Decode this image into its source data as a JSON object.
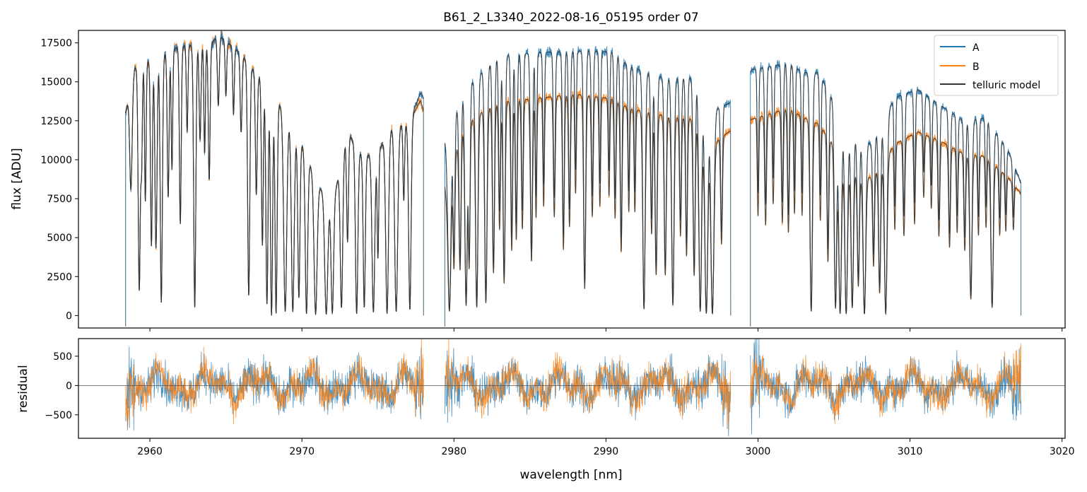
{
  "chart_data": [
    {
      "type": "line",
      "panel": "flux",
      "title": "B61_2_L3340_2022-08-16_05195  order 07",
      "xlabel": "",
      "ylabel": "flux [ADU]",
      "xlim": [
        2955.3,
        3020.2
      ],
      "ylim": [
        -800,
        18300
      ],
      "xticks": [
        2960,
        2970,
        2980,
        2990,
        3000,
        3010,
        3020
      ],
      "yticks": [
        0,
        2500,
        5000,
        7500,
        10000,
        12500,
        15000,
        17500
      ],
      "ytick_labels": [
        "0",
        "2500",
        "5000",
        "7500",
        "10000",
        "12500",
        "15000",
        "17500"
      ],
      "legend": {
        "placement": "top-right",
        "entries": [
          "A",
          "B",
          "telluric model"
        ]
      },
      "colors": {
        "A": "#1f77b4",
        "B": "#ff7f0e",
        "telluric model": "#333333"
      },
      "segments": [
        [
          2958.4,
          2978.0
        ],
        [
          2979.4,
          2998.2
        ],
        [
          2999.5,
          3017.3
        ]
      ],
      "continuum": {
        "note_units": "wavelength nm, flux ADU",
        "A": [
          [
            2958.4,
            13000
          ],
          [
            2959.0,
            15900
          ],
          [
            2961.0,
            16800
          ],
          [
            2962.0,
            17300
          ],
          [
            2964.0,
            17400
          ],
          [
            2964.5,
            18000
          ],
          [
            2966.0,
            16800
          ],
          [
            2967.0,
            15500
          ],
          [
            2968.0,
            14400
          ],
          [
            2969.0,
            12800
          ],
          [
            2970.0,
            11000
          ],
          [
            2971.0,
            8500
          ],
          [
            2972.0,
            7000
          ],
          [
            2973.0,
            11800
          ],
          [
            2974.0,
            10200
          ],
          [
            2975.0,
            10500
          ],
          [
            2976.0,
            12200
          ],
          [
            2977.0,
            12300
          ],
          [
            2977.8,
            14300
          ],
          [
            2979.5,
            11000
          ],
          [
            2980.5,
            14200
          ],
          [
            2982.0,
            15800
          ],
          [
            2983.0,
            16700
          ],
          [
            2986.0,
            16900
          ],
          [
            2989.0,
            17000
          ],
          [
            2990.5,
            16900
          ],
          [
            2991.5,
            16000
          ],
          [
            2994.0,
            15200
          ],
          [
            2996.0,
            15300
          ],
          [
            2997.0,
            13200
          ],
          [
            2998.1,
            13600
          ],
          [
            2999.6,
            15800
          ],
          [
            3002.0,
            16200
          ],
          [
            3003.0,
            15600
          ],
          [
            3004.0,
            15600
          ],
          [
            3006.0,
            11800
          ],
          [
            3007.5,
            11000
          ],
          [
            3009.0,
            14000
          ],
          [
            3010.5,
            14500
          ],
          [
            3012.0,
            13500
          ],
          [
            3013.5,
            12500
          ],
          [
            3015.0,
            12700
          ],
          [
            3016.5,
            10500
          ],
          [
            3017.3,
            8500
          ]
        ],
        "B": [
          [
            2958.4,
            13000
          ],
          [
            2959.0,
            15900
          ],
          [
            2961.0,
            16800
          ],
          [
            2962.0,
            17300
          ],
          [
            2964.0,
            17400
          ],
          [
            2964.5,
            18000
          ],
          [
            2966.0,
            16800
          ],
          [
            2967.0,
            15500
          ],
          [
            2968.0,
            14400
          ],
          [
            2969.0,
            12800
          ],
          [
            2970.0,
            11000
          ],
          [
            2971.0,
            8500
          ],
          [
            2972.0,
            7000
          ],
          [
            2973.0,
            11800
          ],
          [
            2974.0,
            10200
          ],
          [
            2975.0,
            10500
          ],
          [
            2976.0,
            12200
          ],
          [
            2977.0,
            12300
          ],
          [
            2977.8,
            13800
          ],
          [
            2979.5,
            8000
          ],
          [
            2980.5,
            12000
          ],
          [
            2982.0,
            13200
          ],
          [
            2983.0,
            13700
          ],
          [
            2986.0,
            14000
          ],
          [
            2988.0,
            14200
          ],
          [
            2990.5,
            13900
          ],
          [
            2991.5,
            13300
          ],
          [
            2994.0,
            12800
          ],
          [
            2996.0,
            12600
          ],
          [
            2997.0,
            11000
          ],
          [
            2998.1,
            11800
          ],
          [
            2999.6,
            12600
          ],
          [
            3002.0,
            13300
          ],
          [
            3003.0,
            12700
          ],
          [
            3004.0,
            12300
          ],
          [
            3006.0,
            9500
          ],
          [
            3007.5,
            8800
          ],
          [
            3009.0,
            11000
          ],
          [
            3010.5,
            11800
          ],
          [
            3012.0,
            11200
          ],
          [
            3013.5,
            10400
          ],
          [
            3015.0,
            10200
          ],
          [
            3016.5,
            8800
          ],
          [
            3017.3,
            7800
          ]
        ]
      },
      "absorption_lines": [
        [
          2958.75,
          0.45,
          0.08
        ],
        [
          2959.3,
          0.9,
          0.07
        ],
        [
          2959.45,
          0.4,
          0.05
        ],
        [
          2959.7,
          0.55,
          0.05
        ],
        [
          2960.1,
          0.73,
          0.06
        ],
        [
          2960.4,
          0.74,
          0.07
        ],
        [
          2960.75,
          0.95,
          0.07
        ],
        [
          2961.2,
          0.55,
          0.06
        ],
        [
          2961.45,
          0.45,
          0.05
        ],
        [
          2962.0,
          0.66,
          0.06
        ],
        [
          2962.45,
          0.32,
          0.05
        ],
        [
          2962.95,
          0.97,
          0.07
        ],
        [
          2963.3,
          0.35,
          0.06
        ],
        [
          2963.6,
          0.4,
          0.05
        ],
        [
          2963.9,
          0.5,
          0.06
        ],
        [
          2964.5,
          0.25,
          0.06
        ],
        [
          2965.0,
          0.2,
          0.05
        ],
        [
          2965.5,
          0.25,
          0.05
        ],
        [
          2966.0,
          0.3,
          0.06
        ],
        [
          2966.5,
          0.92,
          0.07
        ],
        [
          2967.0,
          0.5,
          0.06
        ],
        [
          2967.4,
          0.7,
          0.06
        ],
        [
          2967.7,
          0.95,
          0.07
        ],
        [
          2968.0,
          1.0,
          0.07
        ],
        [
          2968.3,
          0.99,
          0.07
        ],
        [
          2968.9,
          0.98,
          0.1
        ],
        [
          2969.4,
          0.98,
          0.09
        ],
        [
          2969.8,
          0.9,
          0.07
        ],
        [
          2970.3,
          0.99,
          0.08
        ],
        [
          2970.9,
          0.99,
          0.1
        ],
        [
          2971.6,
          0.99,
          0.1
        ],
        [
          2972.0,
          0.98,
          0.08
        ],
        [
          2972.6,
          0.95,
          0.08
        ],
        [
          2973.0,
          0.6,
          0.06
        ],
        [
          2973.6,
          0.99,
          0.08
        ],
        [
          2974.1,
          0.95,
          0.07
        ],
        [
          2974.7,
          0.98,
          0.09
        ],
        [
          2975.0,
          0.65,
          0.05
        ],
        [
          2975.6,
          0.99,
          0.09
        ],
        [
          2976.2,
          0.98,
          0.1
        ],
        [
          2976.7,
          0.4,
          0.05
        ],
        [
          2977.1,
          0.97,
          0.08
        ],
        [
          2979.7,
          0.97,
          0.1
        ],
        [
          2980.0,
          0.7,
          0.06
        ],
        [
          2980.4,
          0.75,
          0.07
        ],
        [
          2980.8,
          0.95,
          0.08
        ],
        [
          2981.0,
          0.75,
          0.06
        ],
        [
          2981.5,
          0.96,
          0.08
        ],
        [
          2982.1,
          0.94,
          0.08
        ],
        [
          2982.6,
          0.8,
          0.07
        ],
        [
          2983.0,
          0.6,
          0.06
        ],
        [
          2983.3,
          0.85,
          0.07
        ],
        [
          2983.8,
          0.7,
          0.06
        ],
        [
          2984.1,
          0.65,
          0.06
        ],
        [
          2984.5,
          0.6,
          0.06
        ],
        [
          2985.1,
          0.75,
          0.07
        ],
        [
          2985.4,
          0.55,
          0.05
        ],
        [
          2985.9,
          0.5,
          0.05
        ],
        [
          2986.6,
          0.55,
          0.06
        ],
        [
          2987.2,
          0.7,
          0.06
        ],
        [
          2987.6,
          0.6,
          0.06
        ],
        [
          2988.0,
          0.45,
          0.05
        ],
        [
          2988.6,
          0.88,
          0.07
        ],
        [
          2989.1,
          0.55,
          0.06
        ],
        [
          2989.6,
          0.5,
          0.05
        ],
        [
          2990.2,
          0.45,
          0.05
        ],
        [
          2990.6,
          0.55,
          0.06
        ],
        [
          2991.0,
          0.7,
          0.06
        ],
        [
          2991.5,
          0.5,
          0.05
        ],
        [
          2991.9,
          0.5,
          0.05
        ],
        [
          2992.5,
          0.97,
          0.08
        ],
        [
          2993.0,
          0.6,
          0.06
        ],
        [
          2993.3,
          0.8,
          0.07
        ],
        [
          2993.9,
          0.8,
          0.07
        ],
        [
          2994.4,
          0.95,
          0.08
        ],
        [
          2994.9,
          0.6,
          0.06
        ],
        [
          2995.3,
          0.7,
          0.06
        ],
        [
          2995.8,
          0.8,
          0.07
        ],
        [
          2996.2,
          0.98,
          0.09
        ],
        [
          2996.6,
          0.99,
          0.1
        ],
        [
          2997.0,
          0.99,
          0.1
        ],
        [
          2997.6,
          0.6,
          0.06
        ],
        [
          3000.0,
          0.5,
          0.05
        ],
        [
          3000.5,
          0.55,
          0.06
        ],
        [
          3001.0,
          0.45,
          0.05
        ],
        [
          3001.6,
          0.55,
          0.06
        ],
        [
          3002.0,
          0.6,
          0.06
        ],
        [
          3002.4,
          0.5,
          0.05
        ],
        [
          3002.9,
          0.5,
          0.05
        ],
        [
          3003.5,
          0.98,
          0.08
        ],
        [
          3004.1,
          0.5,
          0.05
        ],
        [
          3004.6,
          0.7,
          0.06
        ],
        [
          3005.1,
          0.96,
          0.08
        ],
        [
          3005.4,
          0.99,
          0.09
        ],
        [
          3005.8,
          0.99,
          0.09
        ],
        [
          3006.2,
          0.95,
          0.08
        ],
        [
          3006.6,
          0.8,
          0.07
        ],
        [
          3007.0,
          0.99,
          0.09
        ],
        [
          3007.6,
          0.65,
          0.06
        ],
        [
          3008.0,
          0.85,
          0.07
        ],
        [
          3008.4,
          0.99,
          0.09
        ],
        [
          3009.0,
          0.5,
          0.05
        ],
        [
          3009.6,
          0.55,
          0.06
        ],
        [
          3010.3,
          0.5,
          0.05
        ],
        [
          3010.9,
          0.35,
          0.05
        ],
        [
          3011.4,
          0.4,
          0.05
        ],
        [
          3011.9,
          0.55,
          0.06
        ],
        [
          3012.6,
          0.6,
          0.06
        ],
        [
          3013.1,
          0.5,
          0.05
        ],
        [
          3013.6,
          0.6,
          0.06
        ],
        [
          3014.0,
          0.9,
          0.08
        ],
        [
          3014.5,
          0.5,
          0.05
        ],
        [
          3015.0,
          0.45,
          0.05
        ],
        [
          3015.4,
          0.95,
          0.08
        ],
        [
          3015.9,
          0.45,
          0.05
        ],
        [
          3016.3,
          0.4,
          0.05
        ],
        [
          3016.8,
          0.35,
          0.05
        ]
      ]
    },
    {
      "type": "line",
      "panel": "residual",
      "title": "",
      "xlabel": "wavelength [nm]",
      "ylabel": "residual",
      "xlim": [
        2955.3,
        3020.2
      ],
      "ylim": [
        -900,
        800
      ],
      "xticks": [
        2960,
        2970,
        2980,
        2990,
        3000,
        3010,
        3020
      ],
      "xtick_labels": [
        "2960",
        "2970",
        "2980",
        "2990",
        "3000",
        "3010",
        "3020"
      ],
      "yticks": [
        -500,
        0,
        500
      ],
      "ytick_labels": [
        "−500",
        "0",
        "500"
      ],
      "zero_line": 0,
      "series": [
        {
          "name": "A",
          "color": "#1f77b4",
          "noise_amplitude": 280
        },
        {
          "name": "B",
          "color": "#ff7f0e",
          "noise_amplitude": 240
        }
      ]
    }
  ]
}
